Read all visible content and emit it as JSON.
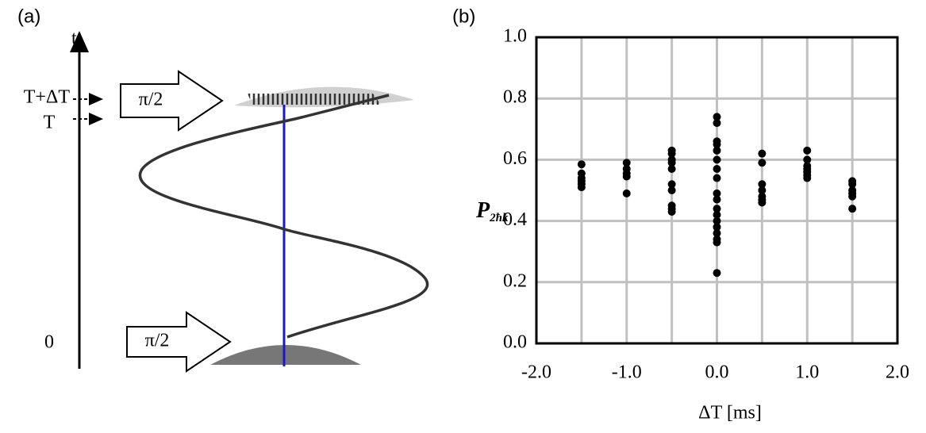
{
  "diagram": {
    "label": "(a)",
    "axis_label": "t",
    "time_marks": [
      "T+ΔT",
      "T",
      "0"
    ],
    "pulses": [
      "π/2",
      "π/2"
    ]
  },
  "chart_data": {
    "type": "scatter",
    "label": "(b)",
    "xlabel": "ΔT [ms]",
    "ylabel": "P",
    "ylabel_subscript": "2ħk",
    "color": "#000000",
    "x": [
      -1.5,
      -1.5,
      -1.5,
      -1.5,
      -1.5,
      -1.5,
      -1.0,
      -1.0,
      -1.0,
      -1.0,
      -1.0,
      -0.5,
      -0.5,
      -0.5,
      -0.5,
      -0.5,
      -0.5,
      -0.5,
      -0.5,
      -0.5,
      -0.5,
      0.0,
      0.0,
      0.0,
      0.0,
      0.0,
      0.0,
      0.0,
      0.0,
      0.0,
      0.0,
      0.0,
      0.0,
      0.0,
      0.0,
      0.0,
      0.0,
      0.0,
      0.0,
      0.5,
      0.5,
      0.5,
      0.5,
      0.5,
      0.5,
      0.5,
      1.0,
      1.0,
      1.0,
      1.0,
      1.0,
      1.0,
      1.0,
      1.5,
      1.5,
      1.5,
      1.5,
      1.5,
      1.5
    ],
    "values": [
      0.585,
      0.555,
      0.54,
      0.53,
      0.52,
      0.51,
      0.59,
      0.57,
      0.555,
      0.545,
      0.49,
      0.63,
      0.62,
      0.6,
      0.59,
      0.57,
      0.52,
      0.5,
      0.45,
      0.44,
      0.43,
      0.74,
      0.72,
      0.66,
      0.65,
      0.63,
      0.6,
      0.57,
      0.54,
      0.49,
      0.47,
      0.44,
      0.42,
      0.4,
      0.38,
      0.36,
      0.34,
      0.33,
      0.23,
      0.62,
      0.59,
      0.52,
      0.5,
      0.48,
      0.47,
      0.46,
      0.63,
      0.6,
      0.58,
      0.57,
      0.56,
      0.55,
      0.54,
      0.53,
      0.52,
      0.5,
      0.49,
      0.48,
      0.44
    ],
    "xlim": [
      -2.0,
      2.0
    ],
    "ylim": [
      0.0,
      1.0
    ],
    "xticks": [
      {
        "value": -2.0,
        "label": "-2.0"
      },
      {
        "value": -1.0,
        "label": "-1.0"
      },
      {
        "value": 0.0,
        "label": "0.0"
      },
      {
        "value": 1.0,
        "label": "1.0"
      },
      {
        "value": 2.0,
        "label": "2.0"
      }
    ],
    "yticks": [
      {
        "value": 0.0,
        "label": "0.0"
      },
      {
        "value": 0.2,
        "label": "0.2"
      },
      {
        "value": 0.4,
        "label": "0.4"
      },
      {
        "value": 0.6,
        "label": "0.6"
      },
      {
        "value": 0.8,
        "label": "0.8"
      },
      {
        "value": 1.0,
        "label": "1.0"
      }
    ],
    "xgrid": [
      -1.5,
      -1.0,
      -0.5,
      0.0,
      0.5,
      1.0,
      1.5
    ],
    "grid": true
  }
}
